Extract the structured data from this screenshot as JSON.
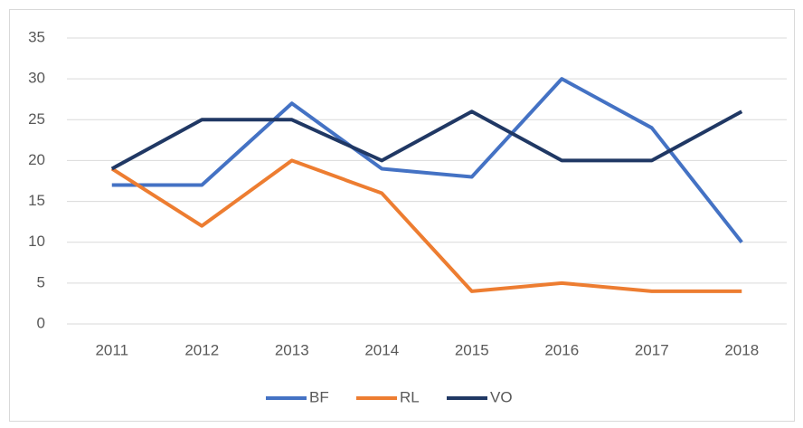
{
  "chart_data": {
    "type": "line",
    "categories": [
      "2011",
      "2012",
      "2013",
      "2014",
      "2015",
      "2016",
      "2017",
      "2018"
    ],
    "series": [
      {
        "name": "BF",
        "color": "#4472c4",
        "values": [
          17,
          17,
          27,
          19,
          18,
          30,
          24,
          10
        ]
      },
      {
        "name": "RL",
        "color": "#ed7d31",
        "values": [
          19,
          12,
          20,
          16,
          4,
          5,
          4,
          4
        ]
      },
      {
        "name": "VO",
        "color": "#203864",
        "values": [
          19,
          25,
          25,
          20,
          26,
          20,
          20,
          26
        ]
      }
    ],
    "ylim": [
      0,
      35
    ],
    "yticks": [
      0,
      5,
      10,
      15,
      20,
      25,
      30,
      35
    ],
    "grid": true,
    "legend": "bottom"
  }
}
